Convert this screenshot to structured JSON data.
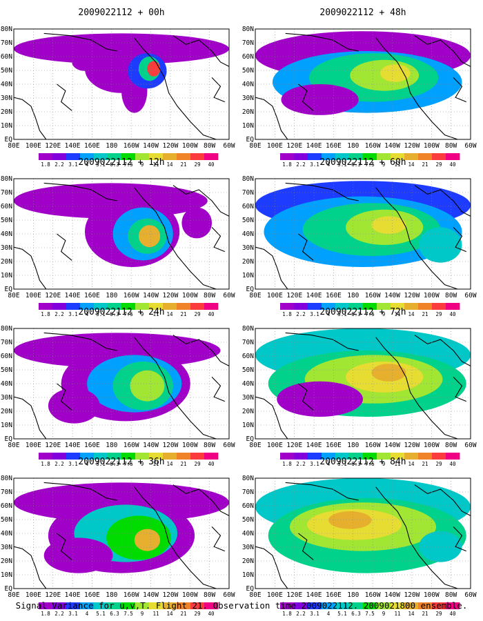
{
  "figure": {
    "caption": "Signal Variance for u,v,T. Flight 21. Observation time 2009022112. 2009021800 ensemble."
  },
  "map": {
    "lon_labels": [
      "80E",
      "100E",
      "120E",
      "140E",
      "160E",
      "180",
      "160W",
      "140W",
      "120W",
      "100W",
      "80W",
      "60W"
    ],
    "lat_labels": [
      "80N",
      "70N",
      "60N",
      "50N",
      "40N",
      "30N",
      "20N",
      "10N",
      "EQ"
    ],
    "lon_range": "80E-60W",
    "lat_range": "EQ-80N",
    "grid": "dotted",
    "coastlines": "black"
  },
  "colorbar": {
    "labels": [
      "1.8",
      "2.2",
      "3.1",
      "4",
      "5.1",
      "6.3",
      "7.5",
      "9",
      "11",
      "14",
      "21",
      "29",
      "40"
    ],
    "colors": [
      "#a000c8",
      "#8200dc",
      "#1e3cff",
      "#00a0ff",
      "#00c8c8",
      "#00d28c",
      "#00dc00",
      "#a0e632",
      "#e6dc32",
      "#e6af2d",
      "#f08228",
      "#fa3c3c",
      "#f00082"
    ]
  },
  "panels": [
    {
      "title": "2009022112 + 00h",
      "lead": "00h"
    },
    {
      "title": "2009022112 + 48h",
      "lead": "48h"
    },
    {
      "title": "2009022112 + 12h",
      "lead": "12h"
    },
    {
      "title": "2009022112 + 60h",
      "lead": "60h"
    },
    {
      "title": "2009022112 + 24h",
      "lead": "24h"
    },
    {
      "title": "2009022112 + 72h",
      "lead": "72h"
    },
    {
      "title": "2009022112 + 36h",
      "lead": "36h"
    },
    {
      "title": "2009022112 + 84h",
      "lead": "84h"
    }
  ]
}
